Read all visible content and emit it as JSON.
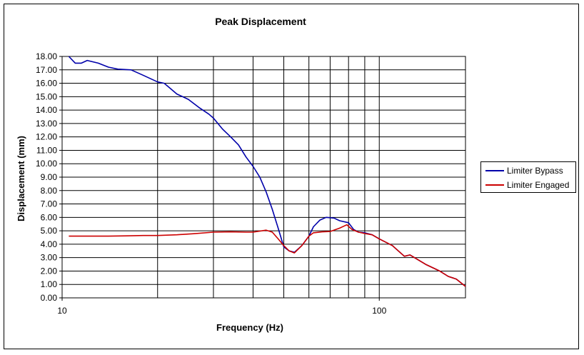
{
  "chart_data": {
    "type": "line",
    "title": "Peak Displacement",
    "xlabel": "Frequency (Hz)",
    "ylabel": "Displacement (mm)",
    "xscale": "log",
    "xlim": [
      10,
      187
    ],
    "ylim": [
      0,
      18
    ],
    "x_tick_labels": [
      "10",
      "100"
    ],
    "y_tick_labels": [
      "0.00",
      "1.00",
      "2.00",
      "3.00",
      "4.00",
      "5.00",
      "6.00",
      "7.00",
      "8.00",
      "9.00",
      "10.00",
      "11.00",
      "12.00",
      "13.00",
      "14.00",
      "15.00",
      "16.00",
      "17.00",
      "18.00"
    ],
    "x_gridlines": [
      20,
      30,
      40,
      50,
      60,
      70,
      80,
      90,
      100
    ],
    "grid": true,
    "legend_position": "right",
    "series": [
      {
        "name": "Limiter Bypass",
        "color": "#0000aa",
        "points": [
          [
            10.5,
            18.0
          ],
          [
            11.0,
            17.5
          ],
          [
            11.5,
            17.5
          ],
          [
            12.0,
            17.7
          ],
          [
            13.0,
            17.5
          ],
          [
            14.0,
            17.2
          ],
          [
            15.0,
            17.05
          ],
          [
            16.5,
            17.0
          ],
          [
            18.0,
            16.6
          ],
          [
            20.0,
            16.1
          ],
          [
            21.0,
            16.0
          ],
          [
            23.0,
            15.2
          ],
          [
            25.0,
            14.8
          ],
          [
            27.0,
            14.2
          ],
          [
            29.0,
            13.7
          ],
          [
            30.0,
            13.4
          ],
          [
            32.0,
            12.6
          ],
          [
            34.0,
            12.0
          ],
          [
            36.0,
            11.4
          ],
          [
            38.0,
            10.5
          ],
          [
            40.0,
            9.8
          ],
          [
            42.0,
            9.0
          ],
          [
            44.0,
            7.9
          ],
          [
            46.0,
            6.6
          ],
          [
            48.0,
            5.2
          ],
          [
            50.0,
            3.8
          ],
          [
            52.0,
            3.5
          ],
          [
            54.0,
            3.4
          ],
          [
            57.0,
            3.9
          ],
          [
            60.0,
            4.6
          ],
          [
            62.0,
            5.3
          ],
          [
            65.0,
            5.8
          ],
          [
            68.0,
            6.0
          ],
          [
            72.0,
            5.95
          ],
          [
            75.0,
            5.75
          ],
          [
            80.0,
            5.6
          ],
          [
            83.0,
            5.1
          ],
          [
            86.0,
            4.9
          ],
          [
            90.0,
            4.85
          ],
          [
            95.0,
            4.7
          ],
          [
            100.0,
            4.4
          ],
          [
            110.0,
            3.9
          ],
          [
            120.0,
            3.1
          ],
          [
            125.0,
            3.2
          ],
          [
            140.0,
            2.5
          ],
          [
            155.0,
            2.0
          ],
          [
            165.0,
            1.6
          ],
          [
            175.0,
            1.4
          ],
          [
            187.0,
            0.85
          ]
        ]
      },
      {
        "name": "Limiter Engaged",
        "color": "#cc0000",
        "points": [
          [
            10.5,
            4.6
          ],
          [
            12.0,
            4.6
          ],
          [
            14.0,
            4.6
          ],
          [
            16.0,
            4.62
          ],
          [
            18.0,
            4.65
          ],
          [
            20.0,
            4.65
          ],
          [
            23.0,
            4.7
          ],
          [
            26.0,
            4.78
          ],
          [
            30.0,
            4.9
          ],
          [
            34.0,
            4.92
          ],
          [
            38.0,
            4.9
          ],
          [
            40.0,
            4.9
          ],
          [
            44.0,
            5.05
          ],
          [
            46.0,
            4.9
          ],
          [
            48.0,
            4.4
          ],
          [
            50.0,
            3.9
          ],
          [
            52.0,
            3.5
          ],
          [
            54.0,
            3.35
          ],
          [
            57.0,
            3.9
          ],
          [
            60.0,
            4.6
          ],
          [
            62.0,
            4.85
          ],
          [
            66.0,
            4.92
          ],
          [
            70.0,
            4.95
          ],
          [
            75.0,
            5.2
          ],
          [
            79.0,
            5.45
          ],
          [
            82.0,
            5.1
          ],
          [
            86.0,
            4.9
          ],
          [
            90.0,
            4.8
          ],
          [
            95.0,
            4.7
          ],
          [
            100.0,
            4.4
          ],
          [
            110.0,
            3.9
          ],
          [
            120.0,
            3.1
          ],
          [
            125.0,
            3.2
          ],
          [
            140.0,
            2.5
          ],
          [
            155.0,
            2.0
          ],
          [
            165.0,
            1.6
          ],
          [
            175.0,
            1.4
          ],
          [
            187.0,
            0.85
          ]
        ]
      }
    ]
  }
}
